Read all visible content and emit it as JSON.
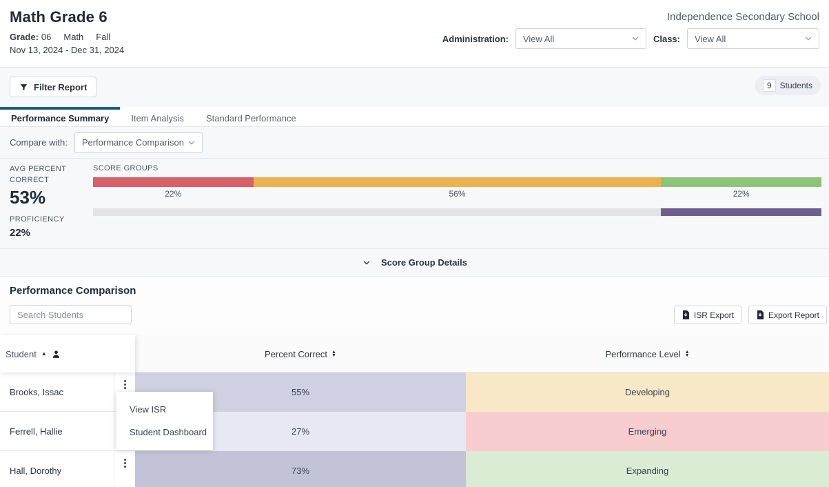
{
  "header": {
    "title": "Math Grade 6",
    "grade_label": "Grade:",
    "grade_value": "06",
    "subject": "Math",
    "term": "Fall",
    "date_range": "Nov 13, 2024 - Dec 31, 2024",
    "school": "Independence Secondary School",
    "administration_label": "Administration:",
    "administration_value": "View All",
    "class_label": "Class:",
    "class_value": "View All"
  },
  "toolbar": {
    "filter_label": "Filter Report",
    "students_count": "9",
    "students_label": "Students"
  },
  "tabs": [
    {
      "label": "Performance Summary"
    },
    {
      "label": "Item Analysis"
    },
    {
      "label": "Standard Performance"
    }
  ],
  "compare": {
    "label": "Compare with:",
    "value": "Performance Comparison"
  },
  "summary": {
    "avg_percent_label": "AVG PERCENT CORRECT",
    "avg_percent_value": "53%",
    "proficiency_label": "PROFICIENCY",
    "proficiency_value": "22%",
    "score_groups_label": "SCORE GROUPS",
    "score_groups": [
      {
        "pct": 22,
        "label": "22%",
        "color": "#d95f68"
      },
      {
        "pct": 56,
        "label": "56%",
        "color": "#ecb24e"
      },
      {
        "pct": 22,
        "label": "22%",
        "color": "#8dc578"
      }
    ],
    "proficiency_bar": {
      "track_pct": 78,
      "fill_pct": 22,
      "track_color": "#e3e3e6",
      "fill_color": "#6f5f8e"
    }
  },
  "details_toggle": {
    "label": "Score Group Details"
  },
  "comparison": {
    "title": "Performance Comparison",
    "search_placeholder": "Search Students",
    "isr_export_label": "ISR Export",
    "export_report_label": "Export Report"
  },
  "table": {
    "columns": {
      "student": "Student",
      "percent": "Percent Correct",
      "level": "Performance Level"
    },
    "rows": [
      {
        "name": "Brooks, Issac",
        "percent": "55%",
        "percent_bg": "#cfd0e1",
        "level": "Developing",
        "level_bg": "#f8e8c8"
      },
      {
        "name": "Ferrell, Hallie",
        "percent": "27%",
        "percent_bg": "#e7e8f2",
        "level": "Emerging",
        "level_bg": "#f7cdcf"
      },
      {
        "name": "Hall, Dorothy",
        "percent": "73%",
        "percent_bg": "#c2c3d7",
        "level": "Expanding",
        "level_bg": "#daecd4"
      }
    ]
  },
  "context_menu": {
    "items": [
      {
        "label": "View ISR"
      },
      {
        "label": "Student Dashboard"
      }
    ]
  }
}
